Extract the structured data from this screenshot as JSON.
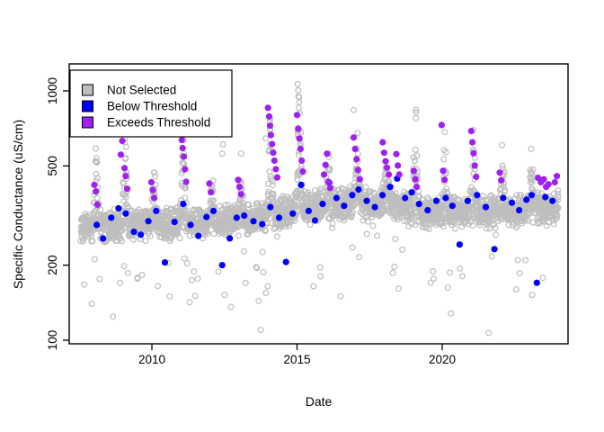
{
  "figure": {
    "background": "#FFFFFF"
  },
  "colors": {
    "frame": "#000000",
    "not_selected": "#BEBEBE",
    "below_threshold": "#0000FF",
    "exceeds_threshold": "#A020F0",
    "text": "#000000"
  },
  "legend": {
    "position": "topleft",
    "items": [
      {
        "label": "Not Selected",
        "color": "#BEBEBE"
      },
      {
        "label": "Below Threshold",
        "color": "#0000FF"
      },
      {
        "label": "Exceeds Threshold",
        "color": "#A020F0"
      }
    ]
  },
  "chart_data": {
    "type": "scatter",
    "title": "",
    "xlabel": "Date",
    "ylabel": "Specific Conductance (uS/cm)",
    "x_axis": {
      "ticks": [
        2010,
        2015,
        2020
      ],
      "tick_labels": [
        "2010",
        "2015",
        "2020"
      ],
      "range": [
        2007.15,
        2024.35
      ],
      "scale": "linear"
    },
    "y_axis": {
      "ticks": [
        100,
        200,
        500,
        1000
      ],
      "tick_labels": [
        "100",
        "200",
        "500",
        "1000"
      ],
      "range": [
        97,
        1230
      ],
      "scale": "log"
    },
    "grid": false,
    "legend_position": "topleft",
    "series": [
      {
        "name": "Not Selected",
        "marker": "open-circle",
        "color": "#BEBEBE",
        "generator": {
          "seed": 20240614,
          "n": 2900,
          "t_start": 2007.55,
          "t_end": 2024.0,
          "base_log_points": [
            [
              2007.55,
              2.455
            ],
            [
              2010,
              2.465
            ],
            [
              2013,
              2.475
            ],
            [
              2016,
              2.545
            ],
            [
              2018,
              2.555
            ],
            [
              2019,
              2.515
            ],
            [
              2021,
              2.515
            ],
            [
              2024.0,
              2.53
            ]
          ],
          "noise_sd": 0.045,
          "winter_center": 0.08,
          "winter_sd": 0.055,
          "boost_power": 1.4,
          "winter_peaks": {
            "2008": 600,
            "2009": 700,
            "2010": 520,
            "2011": 790,
            "2012": 460,
            "2013": 520,
            "2014": 860,
            "2015": 1070,
            "2016": 560,
            "2017": 650,
            "2018": 620,
            "2019": 830,
            "2020": 730,
            "2021": 700,
            "2022": 560,
            "2023": 520,
            "2024": 460
          },
          "low_outlier_prob": 0.022,
          "low_outlier_factor_range": [
            0.45,
            0.8
          ]
        },
        "extra_points": [
          [
            2015.02,
            1065
          ],
          [
            2015.04,
            1005
          ],
          [
            2015.05,
            950
          ],
          [
            2015.07,
            900
          ],
          [
            2015.06,
            855
          ],
          [
            2016.95,
            838
          ],
          [
            2019.1,
            820
          ],
          [
            2013.92,
            645
          ],
          [
            2012.45,
            610
          ],
          [
            2012.42,
            560
          ],
          [
            2008.2,
            176
          ],
          [
            2008.9,
            170
          ],
          [
            2009.5,
            178
          ],
          [
            2010.2,
            165
          ],
          [
            2010.62,
            150
          ],
          [
            2011.3,
            142
          ],
          [
            2012.5,
            152
          ],
          [
            2012.72,
            136
          ],
          [
            2013.75,
            110
          ],
          [
            2016.5,
            150
          ],
          [
            2018.3,
            186
          ],
          [
            2020.3,
            128
          ],
          [
            2021.6,
            107
          ],
          [
            2023.1,
            152
          ],
          [
            2022.55,
            160
          ],
          [
            2019.6,
            170
          ]
        ]
      },
      {
        "name": "Below Threshold",
        "marker": "filled-circle",
        "color": "#0000FF",
        "points": [
          [
            2008.1,
            290
          ],
          [
            2008.32,
            256
          ],
          [
            2008.6,
            310
          ],
          [
            2008.85,
            338
          ],
          [
            2009.1,
            322
          ],
          [
            2009.38,
            272
          ],
          [
            2009.62,
            265
          ],
          [
            2009.88,
            300
          ],
          [
            2010.15,
            330
          ],
          [
            2010.45,
            205
          ],
          [
            2010.78,
            298
          ],
          [
            2011.08,
            352
          ],
          [
            2011.33,
            290
          ],
          [
            2011.6,
            262
          ],
          [
            2011.88,
            312
          ],
          [
            2012.12,
            330
          ],
          [
            2012.42,
            200
          ],
          [
            2012.68,
            256
          ],
          [
            2012.92,
            310
          ],
          [
            2013.18,
            316
          ],
          [
            2013.5,
            300
          ],
          [
            2013.8,
            292
          ],
          [
            2014.08,
            342
          ],
          [
            2014.38,
            310
          ],
          [
            2014.62,
            206
          ],
          [
            2014.85,
            322
          ],
          [
            2015.14,
            420
          ],
          [
            2015.4,
            330
          ],
          [
            2015.62,
            302
          ],
          [
            2015.88,
            352
          ],
          [
            2016.1,
            430
          ],
          [
            2016.36,
            372
          ],
          [
            2016.62,
            346
          ],
          [
            2016.9,
            382
          ],
          [
            2017.12,
            402
          ],
          [
            2017.4,
            362
          ],
          [
            2017.68,
            342
          ],
          [
            2017.94,
            382
          ],
          [
            2018.2,
            412
          ],
          [
            2018.45,
            445
          ],
          [
            2018.72,
            372
          ],
          [
            2018.95,
            392
          ],
          [
            2019.2,
            352
          ],
          [
            2019.5,
            332
          ],
          [
            2019.8,
            362
          ],
          [
            2020.12,
            372
          ],
          [
            2020.35,
            346
          ],
          [
            2020.6,
            242
          ],
          [
            2020.88,
            362
          ],
          [
            2021.2,
            382
          ],
          [
            2021.5,
            342
          ],
          [
            2021.8,
            232
          ],
          [
            2022.1,
            372
          ],
          [
            2022.4,
            356
          ],
          [
            2022.65,
            332
          ],
          [
            2022.9,
            366
          ],
          [
            2023.08,
            382
          ],
          [
            2023.26,
            170
          ],
          [
            2023.55,
            375
          ],
          [
            2023.8,
            362
          ]
        ]
      },
      {
        "name": "Exceeds Threshold",
        "marker": "filled-circle",
        "color": "#A020F0",
        "points": [
          [
            2008.02,
            420
          ],
          [
            2008.07,
            395
          ],
          [
            2008.12,
            350
          ],
          [
            2008.93,
            555
          ],
          [
            2008.98,
            630
          ],
          [
            2009.02,
            700
          ],
          [
            2009.06,
            490
          ],
          [
            2009.1,
            455
          ],
          [
            2009.15,
            405
          ],
          [
            2009.98,
            430
          ],
          [
            2010.03,
            400
          ],
          [
            2010.08,
            372
          ],
          [
            2010.97,
            790
          ],
          [
            2011.0,
            705
          ],
          [
            2011.03,
            635
          ],
          [
            2011.06,
            590
          ],
          [
            2011.1,
            545
          ],
          [
            2011.14,
            485
          ],
          [
            2011.18,
            432
          ],
          [
            2011.98,
            425
          ],
          [
            2012.03,
            392
          ],
          [
            2012.97,
            440
          ],
          [
            2013.02,
            412
          ],
          [
            2013.07,
            385
          ],
          [
            2014.0,
            855
          ],
          [
            2014.04,
            790
          ],
          [
            2014.07,
            725
          ],
          [
            2014.1,
            665
          ],
          [
            2014.14,
            612
          ],
          [
            2014.18,
            565
          ],
          [
            2014.22,
            525
          ],
          [
            2014.27,
            485
          ],
          [
            2014.32,
            450
          ],
          [
            2015.0,
            800
          ],
          [
            2015.04,
            705
          ],
          [
            2015.08,
            645
          ],
          [
            2015.12,
            585
          ],
          [
            2015.16,
            525
          ],
          [
            2015.2,
            475
          ],
          [
            2015.93,
            462
          ],
          [
            2015.98,
            505
          ],
          [
            2016.03,
            560
          ],
          [
            2016.08,
            432
          ],
          [
            2016.14,
            408
          ],
          [
            2016.95,
            650
          ],
          [
            2017.0,
            585
          ],
          [
            2017.05,
            532
          ],
          [
            2017.1,
            482
          ],
          [
            2017.16,
            442
          ],
          [
            2017.95,
            622
          ],
          [
            2018.0,
            565
          ],
          [
            2018.05,
            522
          ],
          [
            2018.1,
            492
          ],
          [
            2018.16,
            462
          ],
          [
            2018.42,
            558
          ],
          [
            2018.47,
            502
          ],
          [
            2018.52,
            462
          ],
          [
            2019.02,
            478
          ],
          [
            2019.07,
            442
          ],
          [
            2019.12,
            412
          ],
          [
            2019.98,
            730
          ],
          [
            2020.03,
            478
          ],
          [
            2020.08,
            440
          ],
          [
            2021.0,
            690
          ],
          [
            2021.04,
            622
          ],
          [
            2021.08,
            562
          ],
          [
            2021.12,
            502
          ],
          [
            2021.17,
            452
          ],
          [
            2021.98,
            470
          ],
          [
            2022.03,
            438
          ],
          [
            2023.3,
            448
          ],
          [
            2023.4,
            430
          ],
          [
            2023.5,
            442
          ],
          [
            2023.58,
            412
          ],
          [
            2023.66,
            422
          ],
          [
            2023.88,
            430
          ],
          [
            2023.95,
            455
          ]
        ]
      }
    ]
  }
}
